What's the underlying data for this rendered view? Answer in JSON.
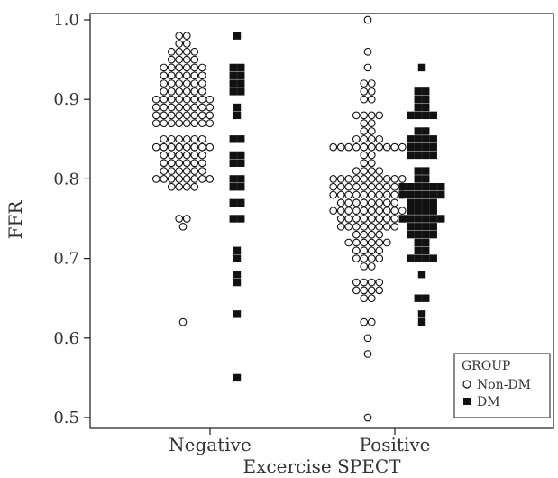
{
  "chart_data": {
    "type": "scatter",
    "xlabel": "Excercise SPECT",
    "ylabel": "FFR",
    "categories": [
      "Negative",
      "Positive"
    ],
    "ylim": [
      0.5,
      1.0
    ],
    "yticks": [
      "0.5",
      "0.6",
      "0.7",
      "0.8",
      "0.9",
      "1.0"
    ],
    "grid": false,
    "legend": {
      "title": "GROUP",
      "position": "bottom-right",
      "entries": [
        {
          "label": "Non-DM",
          "marker": "open-circle"
        },
        {
          "label": "DM",
          "marker": "filled-square"
        }
      ]
    },
    "series": [
      {
        "name": "Non-DM",
        "marker": "open-circle",
        "points": [
          {
            "category": "Negative",
            "value": 0.98,
            "count": 2
          },
          {
            "category": "Negative",
            "value": 0.97,
            "count": 2
          },
          {
            "category": "Negative",
            "value": 0.96,
            "count": 4
          },
          {
            "category": "Negative",
            "value": 0.95,
            "count": 4
          },
          {
            "category": "Negative",
            "value": 0.94,
            "count": 6
          },
          {
            "category": "Negative",
            "value": 0.93,
            "count": 6
          },
          {
            "category": "Negative",
            "value": 0.92,
            "count": 6
          },
          {
            "category": "Negative",
            "value": 0.91,
            "count": 6
          },
          {
            "category": "Negative",
            "value": 0.9,
            "count": 8
          },
          {
            "category": "Negative",
            "value": 0.89,
            "count": 8
          },
          {
            "category": "Negative",
            "value": 0.88,
            "count": 8
          },
          {
            "category": "Negative",
            "value": 0.87,
            "count": 8
          },
          {
            "category": "Negative",
            "value": 0.85,
            "count": 6
          },
          {
            "category": "Negative",
            "value": 0.84,
            "count": 8
          },
          {
            "category": "Negative",
            "value": 0.83,
            "count": 6
          },
          {
            "category": "Negative",
            "value": 0.82,
            "count": 6
          },
          {
            "category": "Negative",
            "value": 0.81,
            "count": 6
          },
          {
            "category": "Negative",
            "value": 0.8,
            "count": 8
          },
          {
            "category": "Negative",
            "value": 0.79,
            "count": 4
          },
          {
            "category": "Negative",
            "value": 0.75,
            "count": 2
          },
          {
            "category": "Negative",
            "value": 0.74,
            "count": 1
          },
          {
            "category": "Negative",
            "value": 0.62,
            "count": 1
          },
          {
            "category": "Positive",
            "value": 1.0,
            "count": 1
          },
          {
            "category": "Positive",
            "value": 0.96,
            "count": 1
          },
          {
            "category": "Positive",
            "value": 0.94,
            "count": 1
          },
          {
            "category": "Positive",
            "value": 0.92,
            "count": 2
          },
          {
            "category": "Positive",
            "value": 0.91,
            "count": 2
          },
          {
            "category": "Positive",
            "value": 0.9,
            "count": 2
          },
          {
            "category": "Positive",
            "value": 0.88,
            "count": 4
          },
          {
            "category": "Positive",
            "value": 0.87,
            "count": 2
          },
          {
            "category": "Positive",
            "value": 0.86,
            "count": 2
          },
          {
            "category": "Positive",
            "value": 0.85,
            "count": 4
          },
          {
            "category": "Positive",
            "value": 0.84,
            "count": 10
          },
          {
            "category": "Positive",
            "value": 0.83,
            "count": 2
          },
          {
            "category": "Positive",
            "value": 0.82,
            "count": 2
          },
          {
            "category": "Positive",
            "value": 0.81,
            "count": 4
          },
          {
            "category": "Positive",
            "value": 0.8,
            "count": 10
          },
          {
            "category": "Positive",
            "value": 0.79,
            "count": 10
          },
          {
            "category": "Positive",
            "value": 0.78,
            "count": 10
          },
          {
            "category": "Positive",
            "value": 0.77,
            "count": 8
          },
          {
            "category": "Positive",
            "value": 0.76,
            "count": 10
          },
          {
            "category": "Positive",
            "value": 0.75,
            "count": 8
          },
          {
            "category": "Positive",
            "value": 0.74,
            "count": 8
          },
          {
            "category": "Positive",
            "value": 0.73,
            "count": 4
          },
          {
            "category": "Positive",
            "value": 0.72,
            "count": 6
          },
          {
            "category": "Positive",
            "value": 0.71,
            "count": 4
          },
          {
            "category": "Positive",
            "value": 0.7,
            "count": 4
          },
          {
            "category": "Positive",
            "value": 0.69,
            "count": 2
          },
          {
            "category": "Positive",
            "value": 0.67,
            "count": 4
          },
          {
            "category": "Positive",
            "value": 0.66,
            "count": 4
          },
          {
            "category": "Positive",
            "value": 0.65,
            "count": 2
          },
          {
            "category": "Positive",
            "value": 0.62,
            "count": 2
          },
          {
            "category": "Positive",
            "value": 0.6,
            "count": 1
          },
          {
            "category": "Positive",
            "value": 0.58,
            "count": 1
          },
          {
            "category": "Positive",
            "value": 0.5,
            "count": 1
          }
        ]
      },
      {
        "name": "DM",
        "marker": "filled-square",
        "points": [
          {
            "category": "Negative",
            "value": 0.98,
            "count": 1
          },
          {
            "category": "Negative",
            "value": 0.94,
            "count": 2
          },
          {
            "category": "Negative",
            "value": 0.93,
            "count": 2
          },
          {
            "category": "Negative",
            "value": 0.92,
            "count": 2
          },
          {
            "category": "Negative",
            "value": 0.91,
            "count": 2
          },
          {
            "category": "Negative",
            "value": 0.89,
            "count": 1
          },
          {
            "category": "Negative",
            "value": 0.88,
            "count": 1
          },
          {
            "category": "Negative",
            "value": 0.85,
            "count": 2
          },
          {
            "category": "Negative",
            "value": 0.83,
            "count": 2
          },
          {
            "category": "Negative",
            "value": 0.82,
            "count": 2
          },
          {
            "category": "Negative",
            "value": 0.8,
            "count": 2
          },
          {
            "category": "Negative",
            "value": 0.79,
            "count": 2
          },
          {
            "category": "Negative",
            "value": 0.77,
            "count": 2
          },
          {
            "category": "Negative",
            "value": 0.75,
            "count": 2
          },
          {
            "category": "Negative",
            "value": 0.71,
            "count": 1
          },
          {
            "category": "Negative",
            "value": 0.7,
            "count": 1
          },
          {
            "category": "Negative",
            "value": 0.68,
            "count": 1
          },
          {
            "category": "Negative",
            "value": 0.67,
            "count": 1
          },
          {
            "category": "Negative",
            "value": 0.63,
            "count": 1
          },
          {
            "category": "Negative",
            "value": 0.55,
            "count": 1
          },
          {
            "category": "Positive",
            "value": 0.94,
            "count": 1
          },
          {
            "category": "Positive",
            "value": 0.91,
            "count": 2
          },
          {
            "category": "Positive",
            "value": 0.9,
            "count": 2
          },
          {
            "category": "Positive",
            "value": 0.89,
            "count": 2
          },
          {
            "category": "Positive",
            "value": 0.88,
            "count": 4
          },
          {
            "category": "Positive",
            "value": 0.86,
            "count": 2
          },
          {
            "category": "Positive",
            "value": 0.85,
            "count": 4
          },
          {
            "category": "Positive",
            "value": 0.84,
            "count": 4
          },
          {
            "category": "Positive",
            "value": 0.83,
            "count": 4
          },
          {
            "category": "Positive",
            "value": 0.81,
            "count": 2
          },
          {
            "category": "Positive",
            "value": 0.8,
            "count": 2
          },
          {
            "category": "Positive",
            "value": 0.79,
            "count": 6
          },
          {
            "category": "Positive",
            "value": 0.78,
            "count": 6
          },
          {
            "category": "Positive",
            "value": 0.77,
            "count": 4
          },
          {
            "category": "Positive",
            "value": 0.76,
            "count": 4
          },
          {
            "category": "Positive",
            "value": 0.75,
            "count": 6
          },
          {
            "category": "Positive",
            "value": 0.74,
            "count": 4
          },
          {
            "category": "Positive",
            "value": 0.73,
            "count": 4
          },
          {
            "category": "Positive",
            "value": 0.72,
            "count": 2
          },
          {
            "category": "Positive",
            "value": 0.71,
            "count": 2
          },
          {
            "category": "Positive",
            "value": 0.7,
            "count": 4
          },
          {
            "category": "Positive",
            "value": 0.68,
            "count": 1
          },
          {
            "category": "Positive",
            "value": 0.65,
            "count": 2
          },
          {
            "category": "Positive",
            "value": 0.63,
            "count": 1
          },
          {
            "category": "Positive",
            "value": 0.62,
            "count": 1
          }
        ]
      }
    ]
  }
}
